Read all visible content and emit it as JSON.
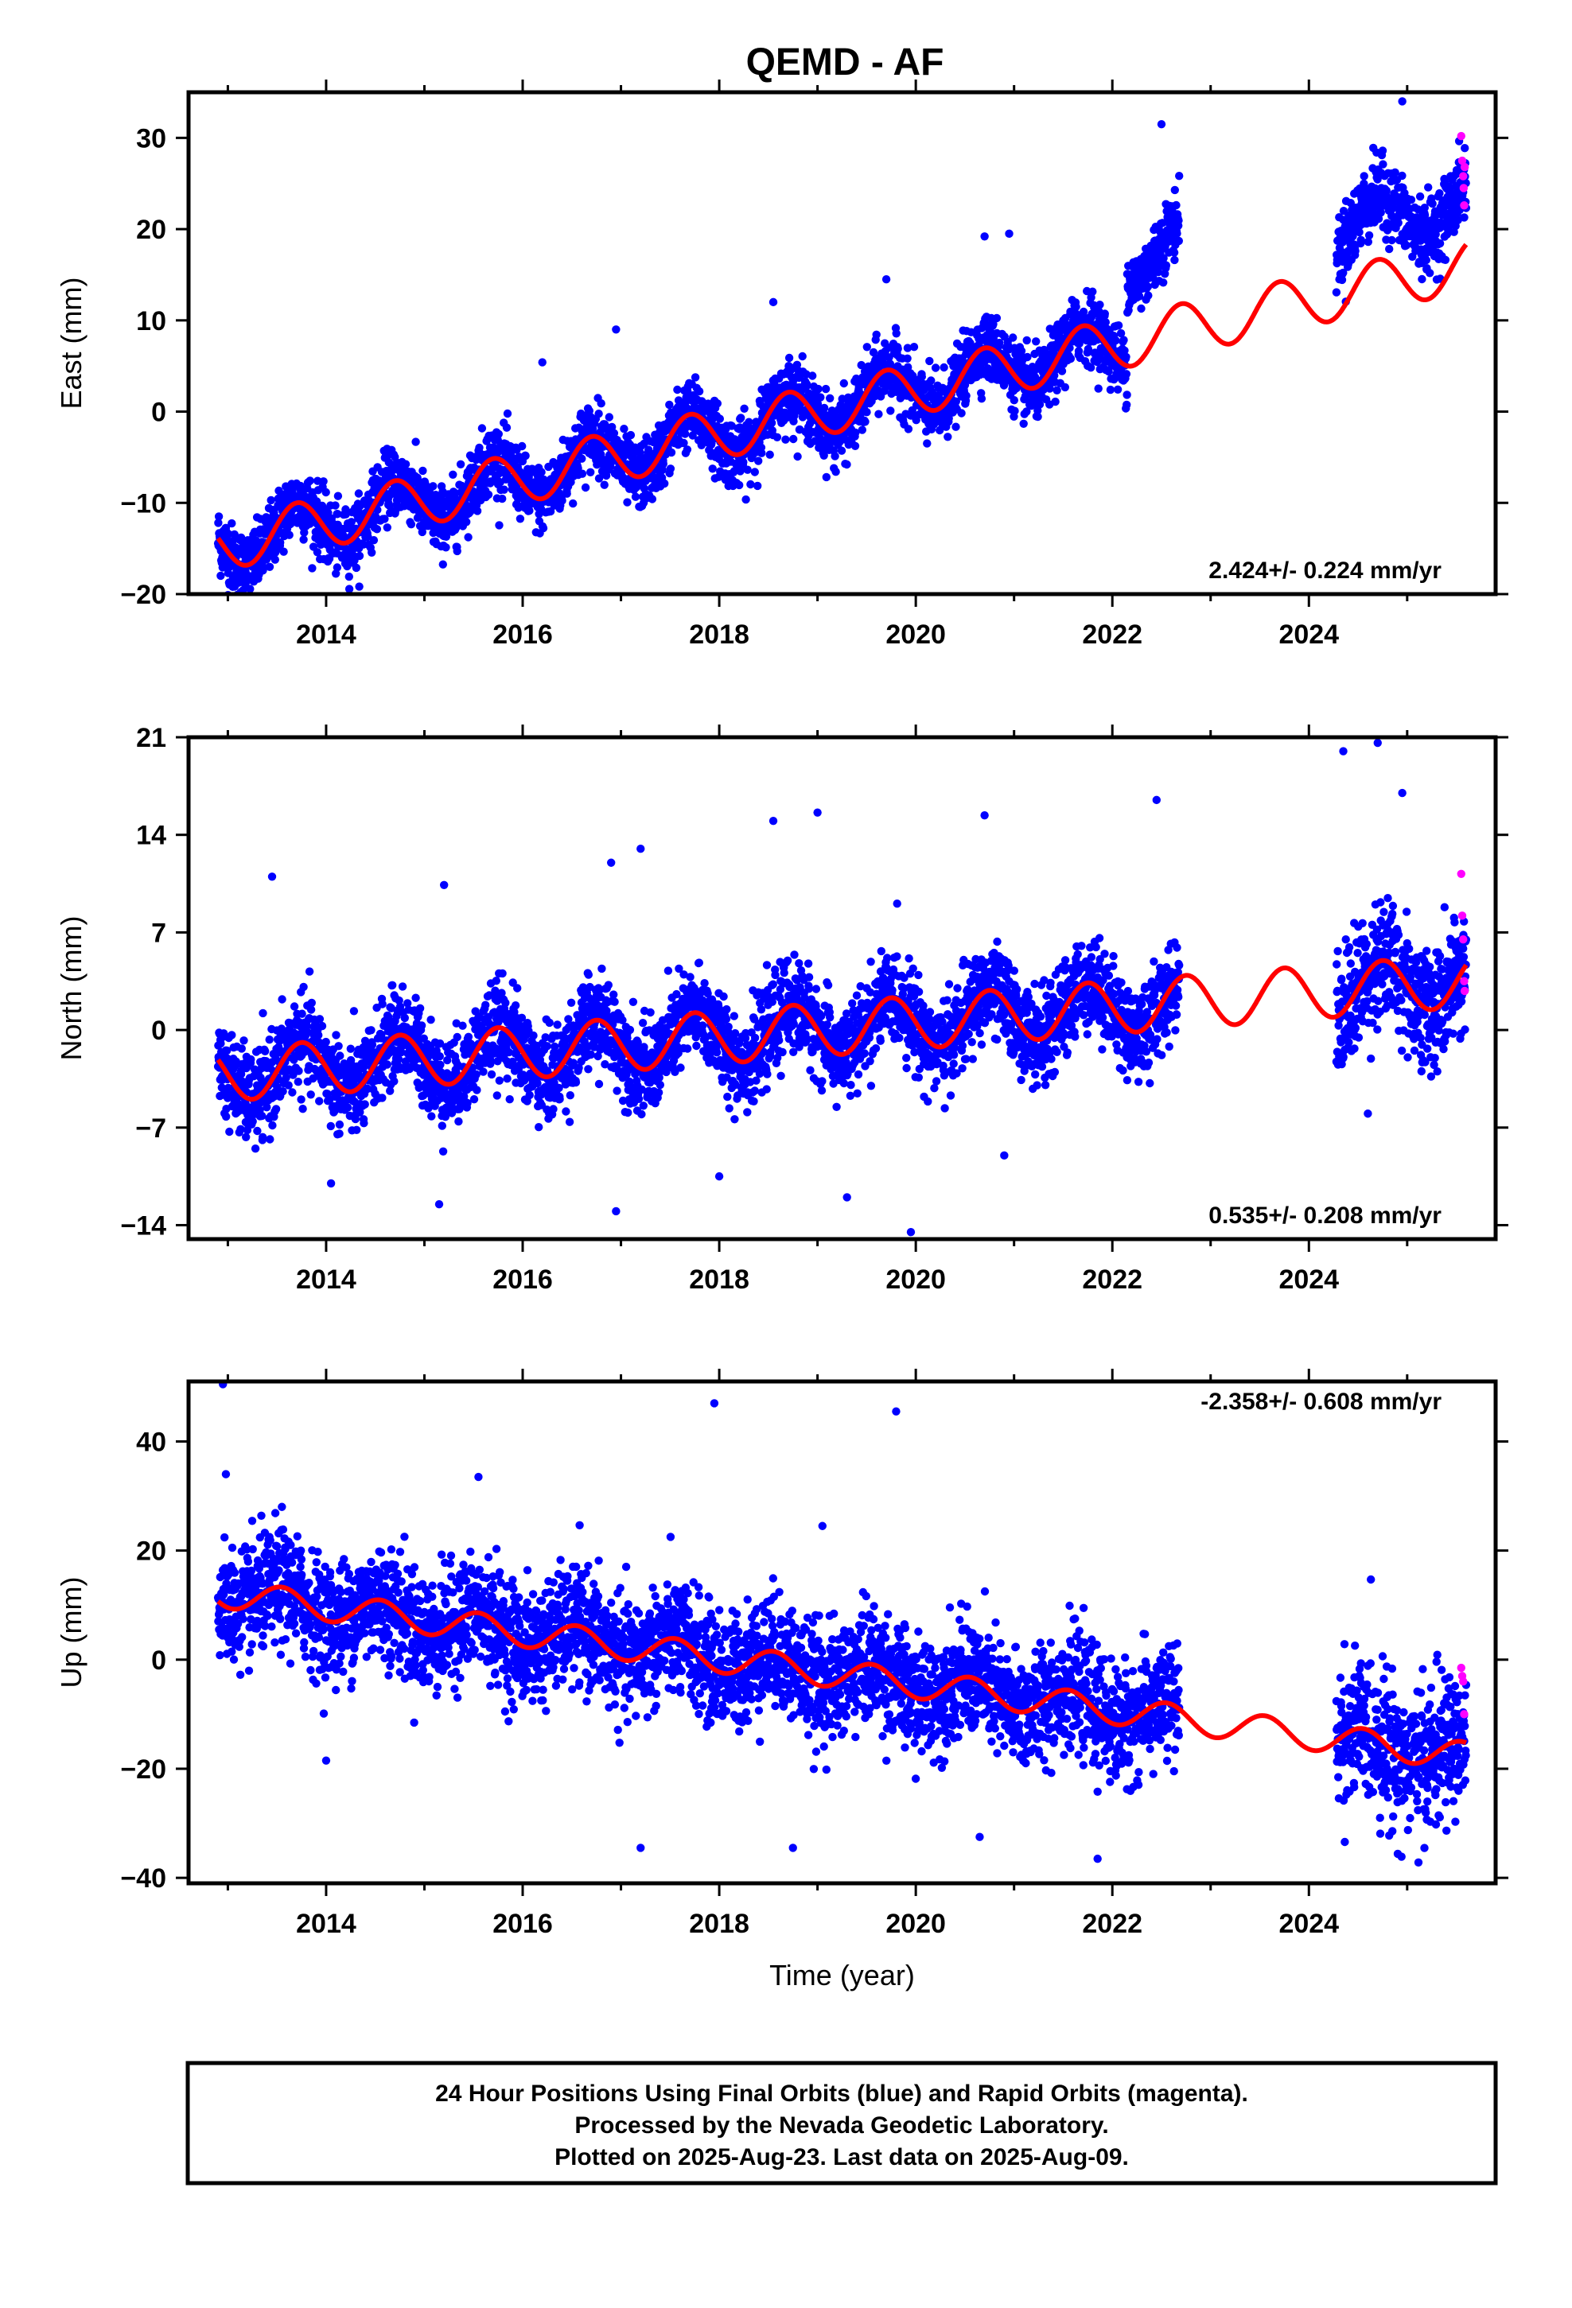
{
  "title": "QEMD - AF",
  "colors": {
    "final_orbits": "#0000ff",
    "rapid_orbits": "#ff00ff",
    "model_fit": "#ff0000",
    "frame": "#000000",
    "background": "#ffffff"
  },
  "caption": {
    "lines": [
      "24 Hour Positions Using Final Orbits (blue) and Rapid Orbits (magenta).",
      "Processed by the Nevada Geodetic Laboratory.",
      "Plotted on 2025-Aug-23. Last data on 2025-Aug-09."
    ]
  },
  "chart_data": [
    {
      "type": "scatter",
      "component": "East",
      "ylabel": "East (mm)",
      "xlabel": "",
      "xlim": [
        2012.6,
        2025.9
      ],
      "ylim": [
        -20,
        35
      ],
      "xticks": [
        2014,
        2016,
        2018,
        2020,
        2022,
        2024
      ],
      "xtick_labels": [
        "2014",
        "2016",
        "2018",
        "2020",
        "2022",
        "2024"
      ],
      "yticks": [
        -20,
        -10,
        0,
        10,
        20,
        30
      ],
      "ytick_labels": [
        "−20",
        "−10",
        "0",
        "10",
        "20",
        "30"
      ],
      "rate_label": "2.424+/- 0.224 mm/yr",
      "grid": false,
      "series": [
        {
          "role": "final",
          "segments": [
            {
              "start": 2012.9,
              "end": 2022.68,
              "intercept": -14.5,
              "rate": 2.424,
              "amplitude": 2.8,
              "phase": 0.45,
              "scatter": 1.8,
              "offset_year": 2022.15,
              "offset_mm": 9.0
            },
            {
              "start": 2024.28,
              "end": 2025.6,
              "intercept": -14.5,
              "rate": 2.424,
              "amplitude": 2.8,
              "phase": 0.45,
              "scatter": 2.0,
              "offset_year": 0,
              "offset_mm": 7.0
            }
          ]
        },
        {
          "role": "rapid",
          "x": [
            2025.55,
            2025.56,
            2025.57,
            2025.575,
            2025.58,
            2025.585
          ],
          "y": [
            30.2,
            27.5,
            25.8,
            24.5,
            22.6,
            26.8
          ]
        },
        {
          "role": "model",
          "start": 2012.9,
          "end": 2025.6,
          "intercept": -14.5,
          "rate": 2.424,
          "amplitude": 2.8,
          "phase": 0.45
        }
      ],
      "outliers": {
        "x": [
          2013.05,
          2016.2,
          2016.95,
          2018.55,
          2019.7,
          2020.7,
          2020.95,
          2022.5,
          2024.95
        ],
        "y": [
          -19.2,
          5.4,
          9.0,
          12.0,
          14.5,
          19.2,
          19.5,
          31.5,
          34.0
        ]
      }
    },
    {
      "type": "scatter",
      "component": "North",
      "ylabel": "North (mm)",
      "xlabel": "",
      "xlim": [
        2012.6,
        2025.9
      ],
      "ylim": [
        -15,
        21
      ],
      "xticks": [
        2014,
        2016,
        2018,
        2020,
        2022,
        2024
      ],
      "xtick_labels": [
        "2014",
        "2016",
        "2018",
        "2020",
        "2022",
        "2024"
      ],
      "yticks": [
        -14,
        -7,
        0,
        7,
        14,
        21
      ],
      "ytick_labels": [
        "−14",
        "−7",
        "0",
        "7",
        "14",
        "21"
      ],
      "rate_label": "0.535+/- 0.208 mm/yr",
      "grid": false,
      "series": [
        {
          "role": "final",
          "segments": [
            {
              "start": 2012.9,
              "end": 2022.68,
              "intercept": -3.2,
              "rate": 0.535,
              "amplitude": 1.9,
              "phase": 0.5,
              "scatter": 1.6,
              "offset_year": 0,
              "offset_mm": 0
            },
            {
              "start": 2024.28,
              "end": 2025.6,
              "intercept": -3.2,
              "rate": 0.535,
              "amplitude": 1.9,
              "phase": 0.5,
              "scatter": 2.2,
              "offset_year": 0,
              "offset_mm": 0
            }
          ]
        },
        {
          "role": "rapid",
          "x": [
            2025.55,
            2025.56,
            2025.57,
            2025.58,
            2025.585
          ],
          "y": [
            11.2,
            8.2,
            6.5,
            3.5,
            2.8
          ]
        },
        {
          "role": "model",
          "start": 2012.9,
          "end": 2025.6,
          "intercept": -3.2,
          "rate": 0.535,
          "amplitude": 1.9,
          "phase": 0.5
        }
      ],
      "outliers": {
        "x": [
          2013.45,
          2014.05,
          2015.2,
          2015.15,
          2016.9,
          2017.2,
          2016.95,
          2018.0,
          2018.55,
          2019.0,
          2019.3,
          2019.95,
          2020.7,
          2020.9,
          2022.45,
          2024.35,
          2024.6,
          2024.7,
          2024.95
        ],
        "y": [
          11.0,
          -11.0,
          10.4,
          -12.5,
          12.0,
          13.0,
          -13.0,
          -10.5,
          15.0,
          15.6,
          -12.0,
          -14.5,
          15.4,
          -9.0,
          16.5,
          20.0,
          -6.0,
          20.6,
          17.0
        ]
      }
    },
    {
      "type": "scatter",
      "component": "Up",
      "ylabel": "Up (mm)",
      "xlabel": "Time (year)",
      "xlim": [
        2012.6,
        2025.9
      ],
      "ylim": [
        -41,
        51
      ],
      "xticks": [
        2014,
        2016,
        2018,
        2020,
        2022,
        2024
      ],
      "xtick_labels": [
        "2014",
        "2016",
        "2018",
        "2020",
        "2022",
        "2024"
      ],
      "yticks": [
        -40,
        -20,
        0,
        20,
        40
      ],
      "ytick_labels": [
        "−40",
        "−20",
        "0",
        "20",
        "40"
      ],
      "rate_label": "-2.358+/- 0.608 mm/yr",
      "grid": false,
      "series": [
        {
          "role": "final",
          "segments": [
            {
              "start": 2012.9,
              "end": 2022.68,
              "intercept": 12.0,
              "rate": -2.358,
              "amplitude": 2.6,
              "phase": 0.3,
              "scatter": 5.2,
              "offset_year": 0,
              "offset_mm": 0
            },
            {
              "start": 2024.28,
              "end": 2025.6,
              "intercept": 12.0,
              "rate": -2.358,
              "amplitude": 2.6,
              "phase": 0.3,
              "scatter": 6.5,
              "offset_year": 0,
              "offset_mm": 0
            }
          ]
        },
        {
          "role": "rapid",
          "x": [
            2025.55,
            2025.56,
            2025.57,
            2025.58
          ],
          "y": [
            -1.5,
            -3.0,
            -4.0,
            -10.0
          ]
        },
        {
          "role": "model",
          "start": 2012.9,
          "end": 2025.6,
          "intercept": 12.0,
          "rate": -2.358,
          "amplitude": 2.6,
          "phase": 0.3
        }
      ],
      "outliers": {
        "x": [
          2012.95,
          2012.98,
          2013.55,
          2014.0,
          2015.55,
          2017.2,
          2017.95,
          2018.75,
          2019.05,
          2019.8,
          2020.65,
          2021.85
        ],
        "y": [
          50.5,
          34.0,
          28.0,
          -18.5,
          33.5,
          -34.5,
          47.0,
          -34.5,
          24.5,
          45.5,
          -32.5,
          -36.5
        ]
      }
    }
  ]
}
